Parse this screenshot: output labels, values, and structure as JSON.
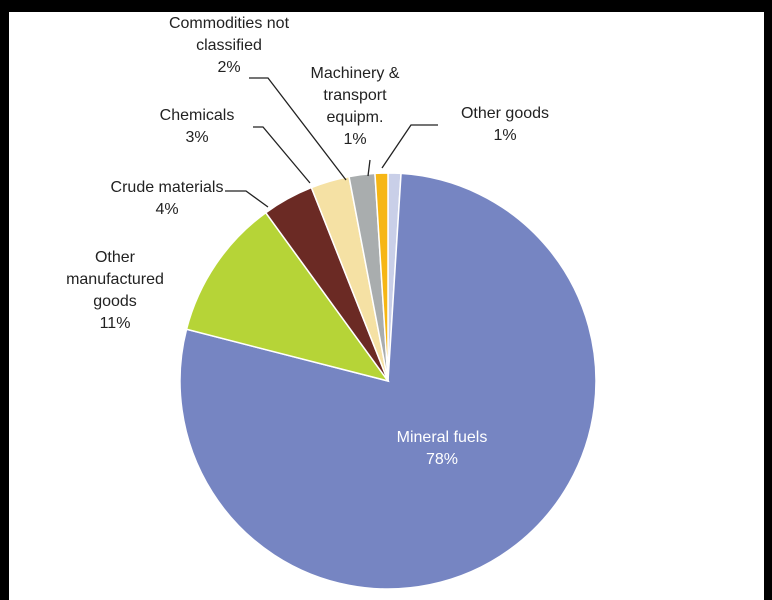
{
  "chart_data": {
    "type": "pie",
    "title": "",
    "slices": [
      {
        "lines": [
          "Other goods"
        ],
        "pct_label": "1%",
        "value": 1,
        "color": "#c9cfe8"
      },
      {
        "lines": [
          "Mineral fuels"
        ],
        "pct_label": "78%",
        "value": 78,
        "color": "#7685c2"
      },
      {
        "lines": [
          "Other",
          "manufactured",
          "goods"
        ],
        "pct_label": "11%",
        "value": 11,
        "color": "#b6d437"
      },
      {
        "lines": [
          "Crude materials"
        ],
        "pct_label": "4%",
        "value": 4,
        "color": "#6b2a24"
      },
      {
        "lines": [
          "Chemicals"
        ],
        "pct_label": "3%",
        "value": 3,
        "color": "#f5e1a4"
      },
      {
        "lines": [
          "Commodities not",
          "classified"
        ],
        "pct_label": "2%",
        "value": 2,
        "color": "#a9adae"
      },
      {
        "lines": [
          "Machinery &",
          "transport",
          "equipm."
        ],
        "pct_label": "1%",
        "value": 1,
        "color": "#f6b615"
      }
    ]
  }
}
